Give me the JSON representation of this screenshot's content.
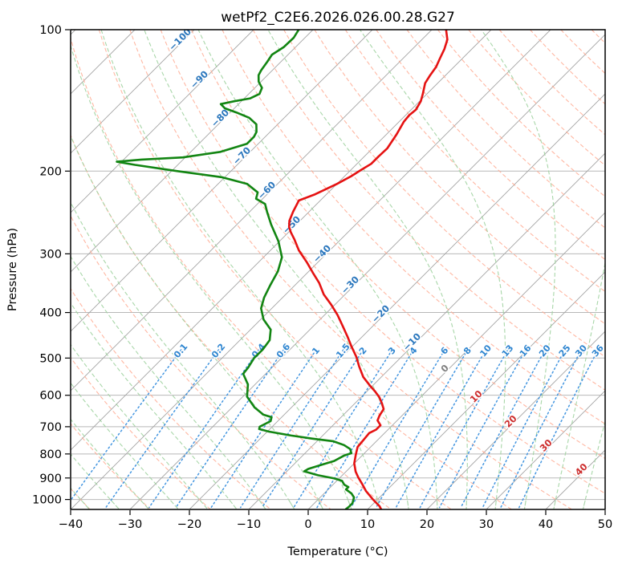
{
  "title": "wetPf2_C2E6.2026.026.00.28.G27",
  "axes": {
    "x_label": "Temperature (°C)",
    "y_label": "Pressure (hPa)",
    "x_tick_labels": [
      "−40",
      "−30",
      "−20",
      "−10",
      "0",
      "10",
      "20",
      "30",
      "40",
      "50"
    ],
    "x_tick_values": [
      -40,
      -30,
      -20,
      -10,
      0,
      10,
      20,
      30,
      40,
      50
    ],
    "y_tick_labels": [
      "100",
      "200",
      "300",
      "400",
      "500",
      "600",
      "700",
      "800",
      "900",
      "1000"
    ],
    "y_tick_values": [
      100,
      200,
      300,
      400,
      500,
      600,
      700,
      800,
      900,
      1000
    ],
    "x_range": [
      -40,
      50
    ],
    "p_range": [
      100,
      1050
    ]
  },
  "chart_data": {
    "type": "line",
    "skew_deg": 45,
    "series": [
      {
        "name": "temperature",
        "color": "#e51212",
        "points": [
          [
            100,
            -57.6
          ],
          [
            105,
            -55.7
          ],
          [
            110,
            -54.6
          ],
          [
            115,
            -53.8
          ],
          [
            120,
            -53.0
          ],
          [
            125,
            -52.6
          ],
          [
            130,
            -52.1
          ],
          [
            137,
            -50.7
          ],
          [
            142,
            -49.8
          ],
          [
            148,
            -49.2
          ],
          [
            152,
            -49.4
          ],
          [
            157,
            -49.2
          ],
          [
            167,
            -48.3
          ],
          [
            179,
            -47.5
          ],
          [
            186,
            -47.6
          ],
          [
            193,
            -47.6
          ],
          [
            199,
            -48.3
          ],
          [
            205,
            -48.9
          ],
          [
            213,
            -50.0
          ],
          [
            224,
            -51.9
          ],
          [
            231,
            -53.6
          ],
          [
            244,
            -52.7
          ],
          [
            255,
            -51.8
          ],
          [
            263,
            -50.8
          ],
          [
            270,
            -49.6
          ],
          [
            279,
            -47.9
          ],
          [
            295,
            -45.2
          ],
          [
            313,
            -41.8
          ],
          [
            329,
            -39.1
          ],
          [
            346,
            -36.3
          ],
          [
            366,
            -33.6
          ],
          [
            385,
            -30.6
          ],
          [
            405,
            -27.8
          ],
          [
            428,
            -25.0
          ],
          [
            451,
            -22.4
          ],
          [
            473,
            -20.1
          ],
          [
            497,
            -17.6
          ],
          [
            521,
            -15.5
          ],
          [
            549,
            -13.0
          ],
          [
            571,
            -10.6
          ],
          [
            589,
            -8.6
          ],
          [
            606,
            -6.9
          ],
          [
            625,
            -5.4
          ],
          [
            642,
            -4.2
          ],
          [
            663,
            -3.8
          ],
          [
            679,
            -3.3
          ],
          [
            695,
            -2.0
          ],
          [
            710,
            -2.0
          ],
          [
            722,
            -2.6
          ],
          [
            746,
            -2.4
          ],
          [
            773,
            -2.2
          ],
          [
            803,
            -1.2
          ],
          [
            838,
            0.0
          ],
          [
            872,
            1.6
          ],
          [
            897,
            3.0
          ],
          [
            925,
            4.7
          ],
          [
            959,
            6.6
          ],
          [
            998,
            9.1
          ],
          [
            1034,
            11.5
          ],
          [
            1050,
            12.3
          ]
        ]
      },
      {
        "name": "dewpoint",
        "color": "#128512",
        "points": [
          [
            100,
            -82.4
          ],
          [
            104,
            -81.9
          ],
          [
            109,
            -82.0
          ],
          [
            113,
            -82.7
          ],
          [
            117,
            -82.3
          ],
          [
            122,
            -81.9
          ],
          [
            125,
            -81.5
          ],
          [
            129,
            -80.4
          ],
          [
            133,
            -78.8
          ],
          [
            137,
            -78.2
          ],
          [
            140,
            -79.0
          ],
          [
            142,
            -81.2
          ],
          [
            144,
            -83.0
          ],
          [
            147,
            -81.6
          ],
          [
            150,
            -79.0
          ],
          [
            154,
            -75.9
          ],
          [
            159,
            -73.6
          ],
          [
            165,
            -72.3
          ],
          [
            169,
            -71.9
          ],
          [
            175,
            -71.9
          ],
          [
            182,
            -75.0
          ],
          [
            187,
            -80.4
          ],
          [
            189,
            -87.0
          ],
          [
            191,
            -90.8
          ],
          [
            194,
            -87.2
          ],
          [
            200,
            -79.0
          ],
          [
            206,
            -70.6
          ],
          [
            213,
            -65.1
          ],
          [
            222,
            -61.9
          ],
          [
            229,
            -61.1
          ],
          [
            235,
            -58.7
          ],
          [
            245,
            -56.9
          ],
          [
            260,
            -54.2
          ],
          [
            282,
            -50.2
          ],
          [
            305,
            -46.9
          ],
          [
            327,
            -45.2
          ],
          [
            351,
            -44.1
          ],
          [
            372,
            -43.1
          ],
          [
            392,
            -41.8
          ],
          [
            414,
            -39.5
          ],
          [
            435,
            -36.6
          ],
          [
            458,
            -35.0
          ],
          [
            479,
            -34.6
          ],
          [
            500,
            -34.6
          ],
          [
            524,
            -34.0
          ],
          [
            540,
            -33.8
          ],
          [
            569,
            -31.2
          ],
          [
            604,
            -29.3
          ],
          [
            637,
            -26.2
          ],
          [
            660,
            -23.5
          ],
          [
            668,
            -21.7
          ],
          [
            681,
            -21.2
          ],
          [
            700,
            -22.1
          ],
          [
            708,
            -21.8
          ],
          [
            717,
            -19.7
          ],
          [
            731,
            -15.3
          ],
          [
            742,
            -11.3
          ],
          [
            752,
            -7.2
          ],
          [
            766,
            -4.8
          ],
          [
            781,
            -3.1
          ],
          [
            797,
            -2.2
          ],
          [
            806,
            -3.0
          ],
          [
            828,
            -3.8
          ],
          [
            845,
            -5.4
          ],
          [
            861,
            -6.8
          ],
          [
            871,
            -7.1
          ],
          [
            888,
            -4.1
          ],
          [
            902,
            -0.8
          ],
          [
            913,
            0.9
          ],
          [
            930,
            1.9
          ],
          [
            941,
            3.0
          ],
          [
            952,
            3.0
          ],
          [
            971,
            4.6
          ],
          [
            990,
            5.7
          ],
          [
            1018,
            6.4
          ],
          [
            1038,
            6.4
          ],
          [
            1048,
            6.3
          ]
        ]
      }
    ],
    "isotherm_labels": {
      "values": [
        -100,
        -90,
        -80,
        -70,
        -60,
        -50,
        -40,
        -30,
        -20,
        -10,
        0,
        10,
        20,
        30,
        40
      ],
      "neg_color": "#2b77bd",
      "zero_color": "#808080",
      "pos_color": "#cd2f2f"
    },
    "mixing_ratio_labels": [
      "0.1",
      "0.2",
      "0.4",
      "0.6",
      "1",
      "1.5",
      "2",
      "3",
      "4",
      "6",
      "8",
      "10",
      "13",
      "16",
      "20",
      "25",
      "30",
      "36"
    ],
    "background": {
      "isotherm_step": 10,
      "dry_adiabats_c": {
        "start": -40,
        "end": 190,
        "step": 10
      },
      "moist_adiabats_c": {
        "start": -40,
        "end": 45,
        "step": 5
      },
      "colors": {
        "isotherm": "#a3a3a3",
        "pressure_grid": "#b8b8b8",
        "dry_adiabat": "#ffaa92",
        "moist_adiabat": "#9ed29e",
        "mixing_ratio": "#4496e0",
        "mixing_label": "#2e85d0"
      }
    }
  }
}
